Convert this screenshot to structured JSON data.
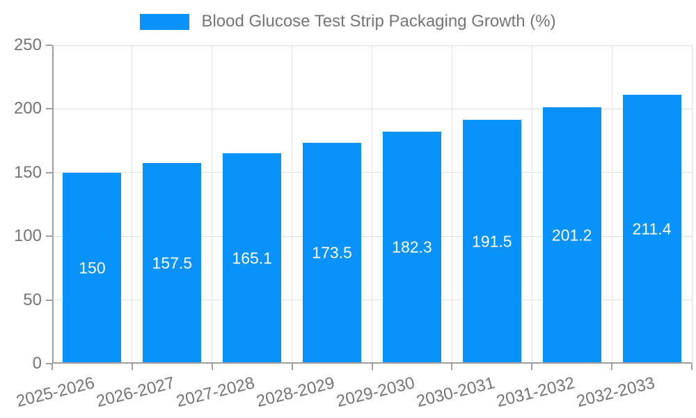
{
  "page": {
    "background": "#ffffff"
  },
  "legend": {
    "position": "top"
  },
  "chart_data": {
    "type": "bar",
    "title": "",
    "categories": [
      "2025-2026",
      "2026-2027",
      "2027-2028",
      "2028-2029",
      "2029-2030",
      "2030-2031",
      "2031-2032",
      "2032-2033"
    ],
    "series": [
      {
        "name": "Blood Glucose Test Strip Packaging Growth (%)",
        "values": [
          150,
          157.5,
          165.1,
          173.5,
          182.3,
          191.5,
          201.2,
          211.4
        ]
      }
    ],
    "data_labels": [
      "150",
      "157.5",
      "165.1",
      "173.5",
      "182.3",
      "191.5",
      "201.2",
      "211.4"
    ],
    "xlabel": "",
    "ylabel": "",
    "ylim": [
      0,
      250
    ],
    "yticks": [
      0,
      50,
      100,
      150,
      200,
      250
    ],
    "grid": true,
    "legend_position": "top",
    "colors": {
      "bar": "#0992fb",
      "bar_label": "#ffffff",
      "axis": "#9e9e9e",
      "gridline": "#e0e0e0",
      "tick_label": "#757575",
      "legend_text": "#757575"
    }
  }
}
